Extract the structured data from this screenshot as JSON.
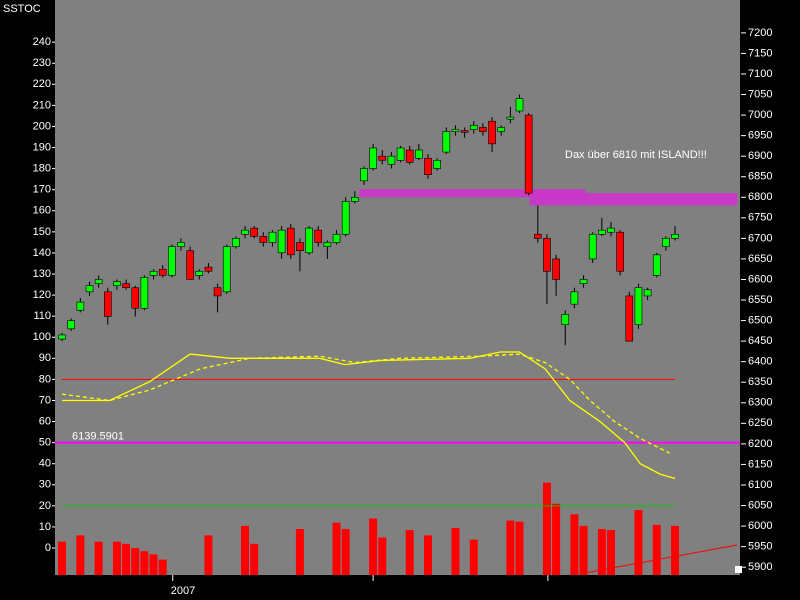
{
  "chart_data": {
    "type": "candlestick",
    "title": "SSTOC",
    "x_label": "2007",
    "annotation": "Dax über 6810 mit ISLAND!!!",
    "level_label": "6139.5901",
    "background": "#808080",
    "xlim": [
      -0.77,
      74.1
    ],
    "xtick_marks": [
      12.1,
      34.0,
      53.1
    ],
    "ylim": [
      -12.8,
      260
    ],
    "yticks": [
      0,
      10,
      20,
      30,
      40,
      50,
      60,
      70,
      80,
      90,
      100,
      110,
      120,
      130,
      140,
      150,
      160,
      170,
      180,
      190,
      200,
      210,
      220,
      230,
      240
    ],
    "y2lim": [
      5881,
      7280
    ],
    "y2ticks": [
      5900,
      5950,
      6000,
      6050,
      6100,
      6150,
      6200,
      6250,
      6300,
      6350,
      6400,
      6450,
      6500,
      6550,
      6600,
      6650,
      6700,
      6750,
      6800,
      6850,
      6900,
      6950,
      7000,
      7050,
      7100,
      7150,
      7200
    ],
    "up_color": "#00ff00",
    "down_color": "#ff0000",
    "candles": {
      "open": [
        6455,
        6480,
        6525,
        6570,
        6590,
        6570,
        6585,
        6590,
        6580,
        6530,
        6610,
        6625,
        6610,
        6680,
        6670,
        6610,
        6630,
        6580,
        6570,
        6680,
        6710,
        6725,
        6705,
        6690,
        6665,
        6725,
        6690,
        6665,
        6720,
        6680,
        6690,
        6710,
        6790,
        6840,
        6870,
        6900,
        6880,
        6890,
        6915,
        6895,
        6895,
        6870,
        6910,
        6960,
        6962,
        6965,
        6970,
        6985,
        6960,
        6990,
        7010,
        7000,
        6710,
        6700,
        6650,
        6490,
        6540,
        6590,
        6650,
        6710,
        6715,
        6715,
        6560,
        6490,
        6560,
        6610,
        6680,
        6700
      ],
      "high": [
        6470,
        6505,
        6555,
        6595,
        6610,
        6580,
        6600,
        6600,
        6585,
        6610,
        6625,
        6635,
        6685,
        6700,
        6680,
        6625,
        6640,
        6590,
        6685,
        6705,
        6730,
        6730,
        6715,
        6720,
        6730,
        6735,
        6700,
        6730,
        6730,
        6695,
        6720,
        6800,
        6815,
        6875,
        6930,
        6915,
        6910,
        6925,
        6925,
        6930,
        6905,
        6895,
        6970,
        6975,
        6970,
        6985,
        6980,
        6995,
        6975,
        7020,
        7050,
        7005,
        6780,
        6710,
        6660,
        6525,
        6580,
        6610,
        6715,
        6750,
        6740,
        6720,
        6570,
        6590,
        6580,
        6665,
        6705,
        6730
      ],
      "low": [
        6450,
        6475,
        6520,
        6560,
        6580,
        6490,
        6575,
        6575,
        6510,
        6525,
        6600,
        6605,
        6605,
        6670,
        6600,
        6600,
        6615,
        6520,
        6565,
        6675,
        6700,
        6700,
        6680,
        6680,
        6650,
        6650,
        6620,
        6660,
        6680,
        6650,
        6685,
        6705,
        6785,
        6830,
        6865,
        6880,
        6870,
        6885,
        6880,
        6890,
        6845,
        6865,
        6905,
        6950,
        6945,
        6955,
        6950,
        6910,
        6950,
        6980,
        7005,
        6805,
        6690,
        6540,
        6560,
        6440,
        6530,
        6580,
        6640,
        6705,
        6705,
        6610,
        6450,
        6480,
        6550,
        6605,
        6670,
        6695
      ],
      "close": [
        6465,
        6500,
        6545,
        6585,
        6600,
        6510,
        6595,
        6580,
        6530,
        6605,
        6620,
        6610,
        6680,
        6690,
        6600,
        6620,
        6620,
        6560,
        6680,
        6700,
        6720,
        6705,
        6690,
        6715,
        6720,
        6660,
        6670,
        6725,
        6690,
        6690,
        6710,
        6790,
        6800,
        6870,
        6920,
        6890,
        6900,
        6920,
        6885,
        6915,
        6855,
        6890,
        6960,
        6965,
        6958,
        6975,
        6960,
        6930,
        6970,
        6995,
        7040,
        6810,
        6700,
        6620,
        6600,
        6515,
        6570,
        6600,
        6710,
        6720,
        6725,
        6620,
        6450,
        6580,
        6575,
        6660,
        6700,
        6710
      ]
    },
    "series": [
      {
        "color": "#ffff00",
        "dashed": false,
        "x": [
          0,
          5.2,
          9.6,
          14,
          18.4,
          28.2,
          30.9,
          34.8,
          44.6,
          47.9,
          50,
          52.8,
          55.5,
          58.8,
          61.5,
          63.2,
          65.4,
          67
        ],
        "values": [
          70,
          70,
          79,
          92,
          90,
          90,
          87,
          89,
          90,
          93,
          93,
          85,
          70,
          60,
          50,
          40,
          35,
          33
        ]
      },
      {
        "color": "#ffff00",
        "dashed": true,
        "x": [
          0,
          5.2,
          9.6,
          15.1,
          20.5,
          28.2,
          32,
          36.9,
          45.7,
          50,
          52.8,
          55.5,
          57.7,
          60.4,
          63.2,
          66.4
        ],
        "values": [
          73,
          70,
          75,
          85,
          90,
          91,
          88,
          90,
          91,
          92,
          88,
          80,
          70,
          60,
          52,
          45
        ]
      }
    ],
    "volume": {
      "color": "#ff0000",
      "x": [
        0,
        2,
        4,
        6,
        7,
        8,
        9,
        10,
        11,
        16,
        20,
        21,
        26,
        30,
        31,
        34,
        35,
        38,
        40,
        43,
        45,
        49,
        50,
        53,
        54,
        56,
        57,
        59,
        60,
        63,
        65,
        67
      ],
      "values": [
        3,
        6,
        3,
        3,
        2,
        0,
        -1.5,
        -3,
        -5.5,
        6,
        10.5,
        2,
        9,
        12,
        9,
        14,
        5,
        8.5,
        6,
        9.5,
        4,
        13,
        12.5,
        31,
        21,
        16,
        10.5,
        9,
        8.5,
        18,
        11,
        10.5
      ]
    },
    "hlines": [
      {
        "value": 80,
        "color": "#ff0000",
        "xrange": [
          0,
          67
        ]
      },
      {
        "value": 20,
        "color": "#00cc00",
        "xrange": [
          0,
          67
        ]
      },
      {
        "value": 50,
        "color": "#ff00ff"
      }
    ],
    "zones": [
      {
        "y2range": [
          6800,
          6820
        ],
        "xrange": [
          32.5,
          57.2
        ],
        "color": "#cc33cc"
      },
      {
        "y2range": [
          6780,
          6810
        ],
        "xrange": [
          51.1,
          73.8
        ],
        "color": "#cc33cc"
      }
    ]
  }
}
